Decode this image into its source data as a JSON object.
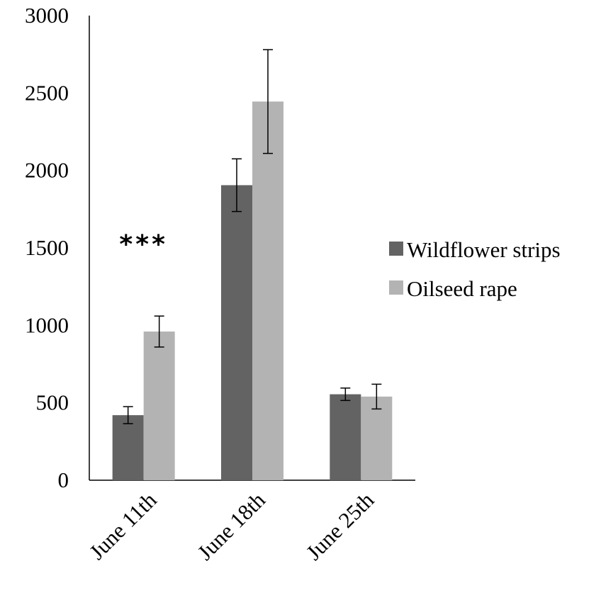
{
  "chart_data": {
    "type": "bar",
    "title": "",
    "xlabel": "",
    "ylabel": "",
    "ylim": [
      0,
      3000
    ],
    "yticks": [
      0,
      500,
      1000,
      1500,
      2000,
      2500,
      3000
    ],
    "ytick_labels": [
      "0",
      "500",
      "1000",
      "1500",
      "2000",
      "2500",
      "3000"
    ],
    "categories": [
      "June 11th",
      "June 18th",
      "June 25th"
    ],
    "series": [
      {
        "name": "Wildflower strips",
        "color": "#636363",
        "values": [
          420,
          1905,
          555
        ],
        "errors": [
          55,
          170,
          40
        ]
      },
      {
        "name": "Oilseed rape",
        "color": "#b3b3b3",
        "values": [
          960,
          2445,
          540
        ],
        "errors": [
          100,
          335,
          80
        ]
      }
    ],
    "annotations": [
      {
        "category": "June 11th",
        "text": "***"
      }
    ],
    "legend_position": "right",
    "grid": false
  }
}
